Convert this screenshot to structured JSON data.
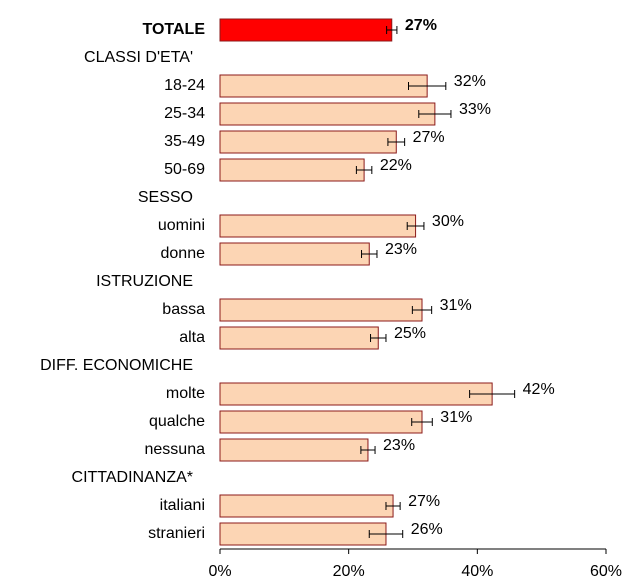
{
  "chart_data": {
    "type": "bar",
    "categories": [
      "TOTALE",
      "CLASSI D'ETA'",
      "18-24",
      "25-34",
      "35-49",
      "50-69",
      "SESSO",
      "uomini",
      "donne",
      "ISTRUZIONE",
      "bassa",
      "alta",
      "DIFF. ECONOMICHE",
      "molte",
      "qualche",
      "nessuna",
      "CITTADINANZA*",
      "italiani",
      "stranieri"
    ],
    "values": [
      26.7,
      null,
      32.2,
      33.4,
      27.4,
      22.4,
      null,
      30.4,
      23.2,
      null,
      31.4,
      24.6,
      null,
      42.3,
      31.4,
      23.0,
      null,
      26.9,
      25.8
    ],
    "errors": [
      0.8,
      null,
      2.9,
      2.5,
      1.3,
      1.2,
      null,
      1.3,
      1.2,
      null,
      1.5,
      1.2,
      null,
      3.5,
      1.6,
      1.1,
      null,
      1.1,
      2.6
    ],
    "value_labels": [
      "27%",
      null,
      "32%",
      "33%",
      "27%",
      "22%",
      null,
      "30%",
      "23%",
      null,
      "31%",
      "25%",
      null,
      "42%",
      "31%",
      "23%",
      null,
      "27%",
      "26%"
    ],
    "colors": [
      "#ff0000",
      null,
      "#fcd5b4",
      "#fcd5b4",
      "#fcd5b4",
      "#fcd5b4",
      null,
      "#fcd5b4",
      "#fcd5b4",
      null,
      "#fcd5b4",
      "#fcd5b4",
      null,
      "#fcd5b4",
      "#fcd5b4",
      "#fcd5b4",
      null,
      "#fcd5b4",
      "#fcd5b4"
    ],
    "xlim": [
      0,
      60
    ],
    "xticks": [
      {
        "value": 0,
        "label": "0%"
      },
      {
        "value": 20,
        "label": "20%"
      },
      {
        "value": 40,
        "label": "40%"
      },
      {
        "value": 60,
        "label": "60%"
      }
    ]
  }
}
